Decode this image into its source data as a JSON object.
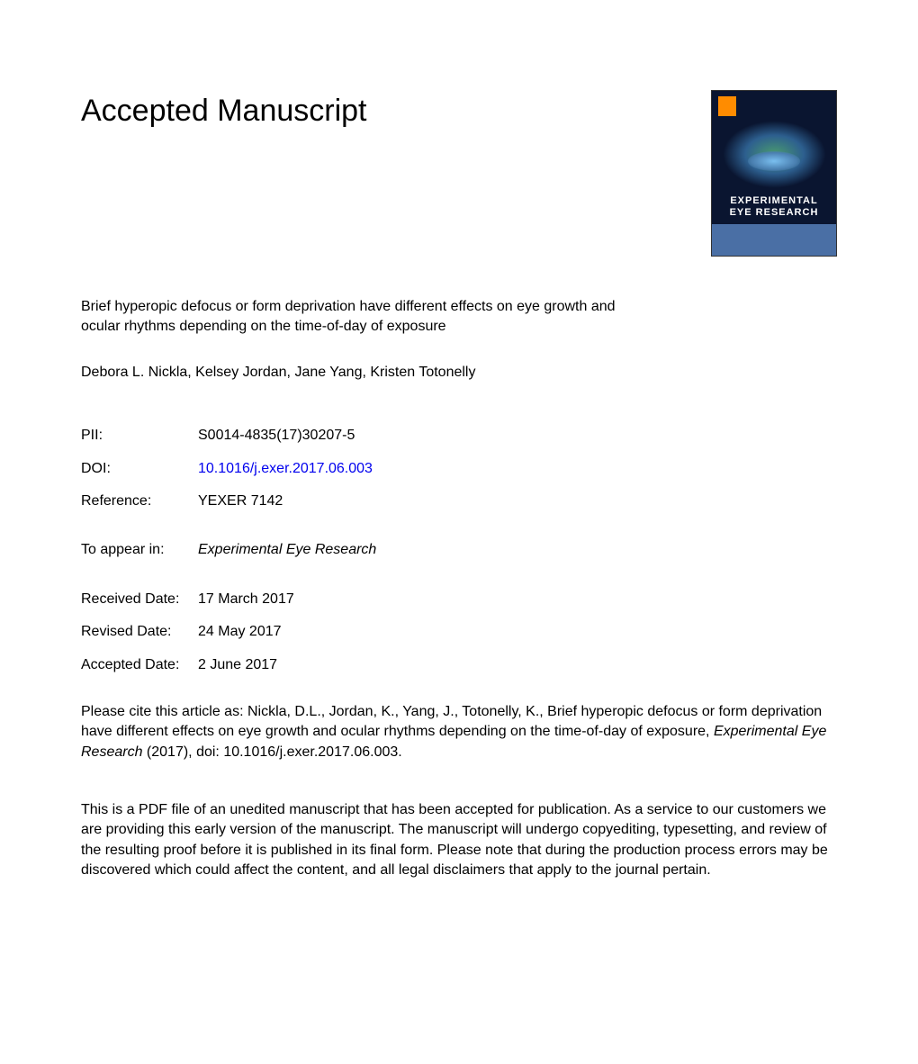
{
  "header": {
    "title": "Accepted Manuscript"
  },
  "cover": {
    "journal_title_line1": "EXPERIMENTAL",
    "journal_title_line2": "EYE RESEARCH",
    "background_color": "#0a1530",
    "footer_color": "#4a6fa5",
    "logo_color": "#ff8c00"
  },
  "article": {
    "title": "Brief hyperopic defocus or form deprivation have different effects on eye growth and ocular rhythms depending on the time-of-day of exposure",
    "authors": "Debora L. Nickla, Kelsey Jordan, Jane Yang, Kristen Totonelly"
  },
  "meta": {
    "pii_label": "PII:",
    "pii_value": "S0014-4835(17)30207-5",
    "doi_label": "DOI:",
    "doi_value": "10.1016/j.exer.2017.06.003",
    "reference_label": "Reference:",
    "reference_value": "YEXER 7142",
    "appear_label": "To appear in:",
    "appear_value": "Experimental Eye Research",
    "received_label": "Received Date:",
    "received_value": "17 March 2017",
    "revised_label": "Revised Date:",
    "revised_value": "24 May 2017",
    "accepted_label": "Accepted Date:",
    "accepted_value": "2 June 2017"
  },
  "citation": {
    "prefix": "Please cite this article as: Nickla, D.L., Jordan, K., Yang, J., Totonelly, K., Brief hyperopic defocus or form deprivation have different effects on eye growth and ocular rhythms depending on the time-of-day of exposure, ",
    "journal": "Experimental Eye Research",
    "suffix": " (2017), doi: 10.1016/j.exer.2017.06.003."
  },
  "disclaimer": {
    "text": "This is a PDF file of an unedited manuscript that has been accepted for publication. As a service to our customers we are providing this early version of the manuscript. The manuscript will undergo copyediting, typesetting, and review of the resulting proof before it is published in its final form. Please note that during the production process errors may be discovered which could affect the content, and all legal disclaimers that apply to the journal pertain."
  },
  "colors": {
    "text": "#000000",
    "link": "#0000ee",
    "background": "#ffffff"
  },
  "typography": {
    "title_fontsize": 34,
    "body_fontsize": 16,
    "font_family": "Arial, Helvetica, sans-serif"
  }
}
